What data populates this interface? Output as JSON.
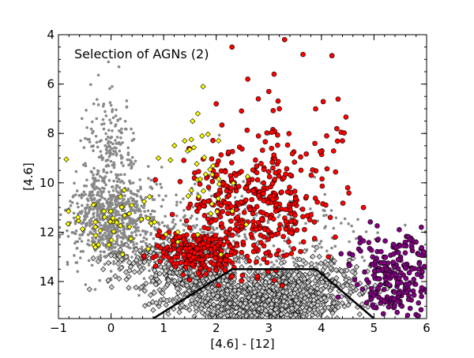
{
  "chart_data": {
    "type": "scatter",
    "title": "Selection of AGNs (2)",
    "xlabel": "[4.6] - [12]",
    "ylabel": "[4.6]",
    "xlim": [
      -1,
      6
    ],
    "ylim": [
      15.5,
      4
    ],
    "y_inverted": true,
    "grid": false,
    "x_ticks": [
      -1,
      0,
      1,
      2,
      3,
      4,
      5,
      6
    ],
    "y_ticks": [
      4,
      6,
      8,
      10,
      12,
      14
    ],
    "x_tick_labels": [
      "−1",
      "0",
      "1",
      "2",
      "3",
      "4",
      "5",
      "6"
    ],
    "y_tick_labels": [
      "4",
      "6",
      "8",
      "10",
      "12",
      "14"
    ],
    "selection_boundary": {
      "color": "#000000",
      "points": [
        [
          0.8,
          15.5
        ],
        [
          2.3,
          13.5
        ],
        [
          3.9,
          13.5
        ],
        [
          5.0,
          15.5
        ]
      ]
    },
    "series": [
      {
        "color": "#888888",
        "marker": "dot",
        "clusters": [
          {
            "cx": 0.0,
            "cy": 11.6,
            "sx": 0.45,
            "sy": 0.9,
            "n": 700
          },
          {
            "cx": 0.0,
            "cy": 9.0,
            "sx": 0.25,
            "sy": 1.2,
            "n": 220
          },
          {
            "cx": 1.3,
            "cy": 12.6,
            "sx": 0.6,
            "sy": 0.8,
            "n": 300
          },
          {
            "cx": 2.5,
            "cy": 12.0,
            "sx": 0.9,
            "sy": 1.3,
            "n": 180
          },
          {
            "cx": 4.0,
            "cy": 12.3,
            "sx": 0.8,
            "sy": 0.8,
            "n": 70
          }
        ],
        "points": [
          [
            -0.05,
            5.1
          ],
          [
            0.15,
            5.3
          ],
          [
            0.02,
            6.1
          ]
        ]
      },
      {
        "color": "#d0d0d0",
        "marker": "diamond",
        "clusters": [
          {
            "cx": 2.9,
            "cy": 14.8,
            "sx": 0.8,
            "sy": 0.55,
            "n": 900
          },
          {
            "cx": 1.6,
            "cy": 13.9,
            "sx": 0.5,
            "sy": 0.55,
            "n": 250
          },
          {
            "cx": 3.8,
            "cy": 13.9,
            "sx": 0.6,
            "sy": 0.5,
            "n": 180
          },
          {
            "cx": 0.6,
            "cy": 13.2,
            "sx": 0.4,
            "sy": 0.4,
            "n": 60
          }
        ]
      },
      {
        "color": "#ff0000",
        "marker": "circle",
        "clusters": [
          {
            "cx": 1.6,
            "cy": 12.8,
            "sx": 0.35,
            "sy": 0.45,
            "n": 200
          },
          {
            "cx": 2.6,
            "cy": 11.0,
            "sx": 0.6,
            "sy": 1.2,
            "n": 300
          },
          {
            "cx": 3.4,
            "cy": 10.3,
            "sx": 0.7,
            "sy": 1.5,
            "n": 110
          }
        ],
        "points": [
          [
            2.3,
            4.5
          ],
          [
            3.3,
            4.2
          ],
          [
            3.65,
            4.8
          ],
          [
            4.2,
            4.85
          ],
          [
            2.6,
            5.8
          ],
          [
            2.8,
            6.6
          ],
          [
            3.1,
            5.6
          ],
          [
            2.0,
            6.8
          ],
          [
            3.2,
            7.0
          ],
          [
            4.4,
            8.3
          ],
          [
            4.5,
            10.2
          ],
          [
            4.8,
            11.0
          ],
          [
            4.1,
            8.1
          ],
          [
            3.0,
            6.3
          ]
        ]
      },
      {
        "color": "#ffff00",
        "marker": "diamond",
        "clusters": [
          {
            "cx": 0.1,
            "cy": 11.6,
            "sx": 0.5,
            "sy": 0.5,
            "n": 45
          },
          {
            "cx": 1.8,
            "cy": 10.2,
            "sx": 0.35,
            "sy": 1.2,
            "n": 35
          }
        ],
        "points": [
          [
            -0.85,
            9.05
          ],
          [
            1.75,
            6.1
          ],
          [
            1.55,
            7.5
          ],
          [
            1.4,
            8.3
          ],
          [
            0.9,
            9.0
          ],
          [
            1.65,
            7.2
          ],
          [
            0.25,
            10.3
          ]
        ]
      },
      {
        "color": "#800080",
        "marker": "circle",
        "clusters": [
          {
            "cx": 5.4,
            "cy": 13.9,
            "sx": 0.38,
            "sy": 0.85,
            "n": 240
          }
        ],
        "points": [
          [
            5.9,
            11.8
          ],
          [
            5.85,
            12.9
          ],
          [
            5.8,
            12.4
          ]
        ]
      }
    ]
  }
}
